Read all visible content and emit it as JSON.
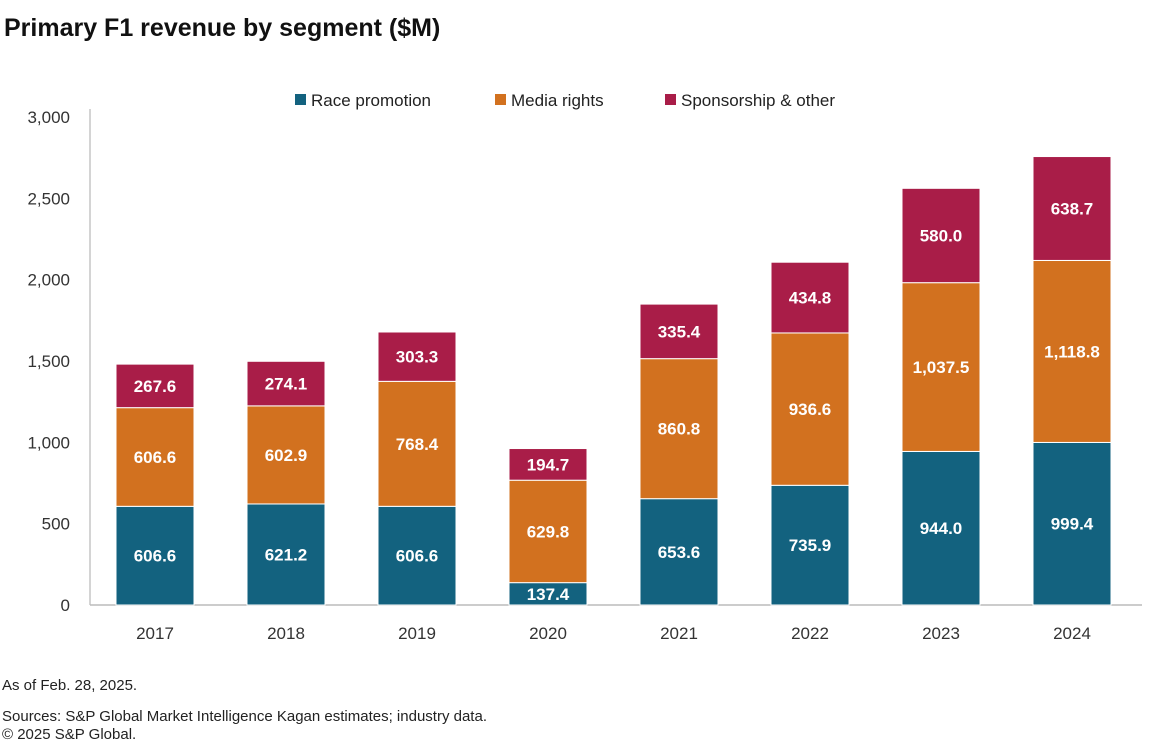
{
  "chart_data": {
    "type": "bar",
    "stacked": true,
    "title": "Primary F1 revenue by segment ($M)",
    "categories": [
      "2017",
      "2018",
      "2019",
      "2020",
      "2021",
      "2022",
      "2023",
      "2024"
    ],
    "series": [
      {
        "name": "Race promotion",
        "color": "#13627f",
        "values": [
          606.6,
          621.2,
          606.6,
          137.4,
          653.6,
          735.9,
          944.0,
          999.4
        ],
        "labels": [
          "606.6",
          "621.2",
          "606.6",
          "137.4",
          "653.6",
          "735.9",
          "944.0",
          "999.4"
        ]
      },
      {
        "name": "Media rights",
        "color": "#d2711f",
        "values": [
          606.6,
          602.9,
          768.4,
          629.8,
          860.8,
          936.6,
          1037.5,
          1118.8
        ],
        "labels": [
          "606.6",
          "602.9",
          "768.4",
          "629.8",
          "860.8",
          "936.6",
          "1,037.5",
          "1,118.8"
        ]
      },
      {
        "name": "Sponsorship & other",
        "color": "#a91d48",
        "values": [
          267.6,
          274.1,
          303.3,
          194.7,
          335.4,
          434.8,
          580.0,
          638.7
        ],
        "labels": [
          "267.6",
          "274.1",
          "303.3",
          "194.7",
          "335.4",
          "434.8",
          "580.0",
          "638.7"
        ]
      }
    ],
    "ylim": [
      0,
      3000
    ],
    "yticks": [
      0,
      500,
      1000,
      1500,
      2000,
      2500,
      3000
    ],
    "ytick_labels": [
      "0",
      "500",
      "1,000",
      "1,500",
      "2,000",
      "2,500",
      "3,000"
    ],
    "grid": false,
    "legend_position": "top"
  },
  "footer": {
    "note": "As of Feb. 28, 2025.",
    "sources": "Sources: S&P Global Market Intelligence Kagan estimates; industry data.",
    "copyright": "© 2025 S&P Global."
  }
}
